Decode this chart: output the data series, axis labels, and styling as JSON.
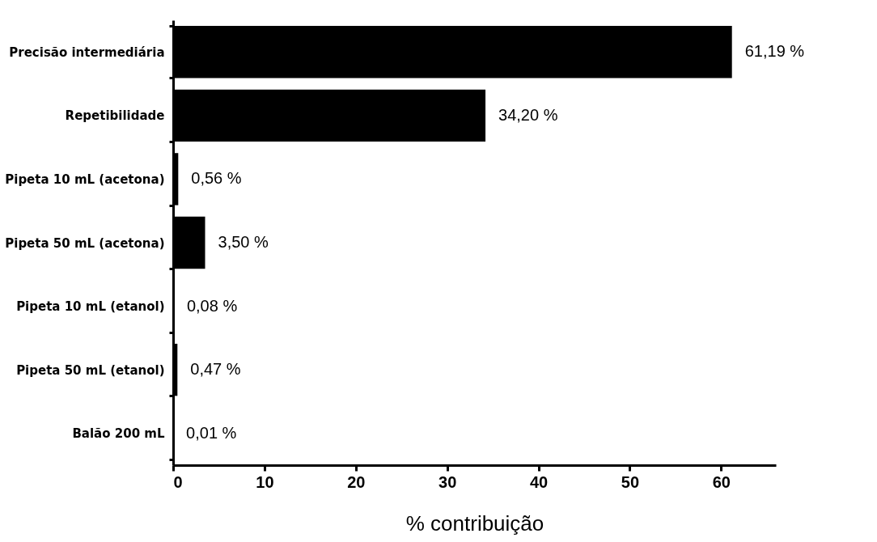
{
  "chart_data": {
    "type": "bar",
    "orientation": "horizontal",
    "xlabel": "% contribuição",
    "categories": [
      "Precisão intermediária",
      "Repetibilidade",
      "Pipeta 10 mL (acetona)",
      "Pipeta 50 mL (acetona)",
      "Pipeta 10 mL (etanol)",
      "Pipeta 50 mL (etanol)",
      "Balão 200 mL"
    ],
    "values": [
      61.19,
      34.2,
      0.56,
      3.5,
      0.08,
      0.47,
      0.01
    ],
    "value_labels": [
      "61,19 %",
      "34,20 %",
      "0,56 %",
      "3,50 %",
      "0,08 %",
      "0,47 %",
      "0,01 %"
    ],
    "color": "#000000",
    "xlim": [
      0,
      66
    ],
    "xticks": [
      0,
      10,
      20,
      30,
      40,
      50,
      60
    ],
    "grid": false
  }
}
